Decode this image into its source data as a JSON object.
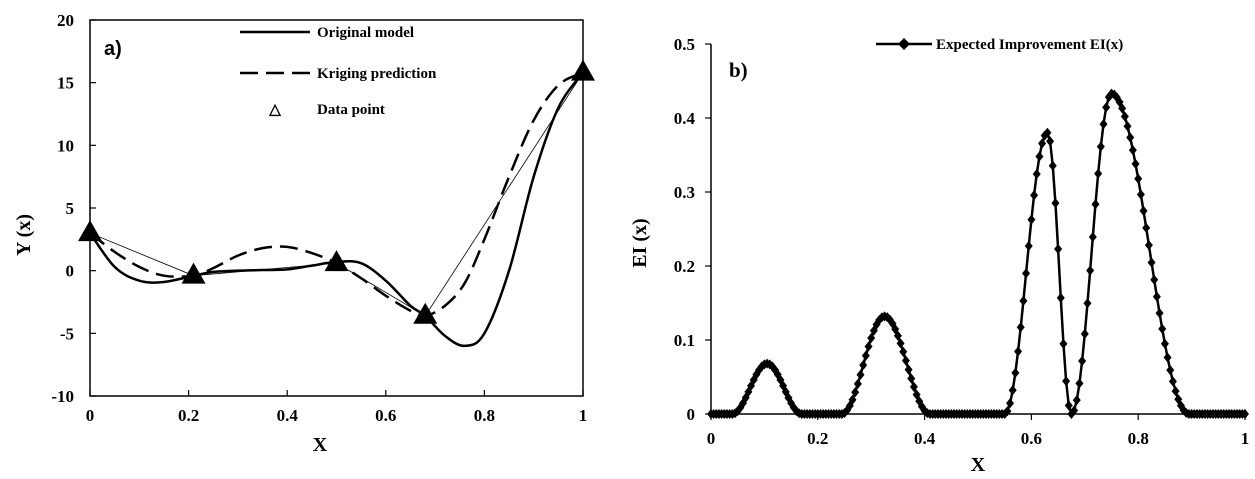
{
  "chart_data": [
    {
      "type": "line",
      "panel_label": "a)",
      "xlabel": "X",
      "ylabel": "Y (x)",
      "xlim": [
        0,
        1
      ],
      "ylim": [
        -10,
        20
      ],
      "xticks": [
        0,
        0.2,
        0.4,
        0.6,
        0.8,
        1
      ],
      "xtick_labels": [
        "0",
        "0.2",
        "0.4",
        "0.6",
        "0.8",
        "1"
      ],
      "yticks": [
        -10,
        -5,
        0,
        5,
        10,
        15,
        20
      ],
      "ytick_labels": [
        "-10",
        "-5",
        "0",
        "5",
        "10",
        "15",
        "20"
      ],
      "legend_position": "top-center",
      "series": [
        {
          "name": "Original model",
          "style": "solid",
          "x": [
            0,
            0.05,
            0.1,
            0.15,
            0.21,
            0.25,
            0.3,
            0.35,
            0.4,
            0.45,
            0.5,
            0.55,
            0.6,
            0.65,
            0.68,
            0.72,
            0.76,
            0.8,
            0.85,
            0.9,
            0.95,
            1.0
          ],
          "y": [
            3.0,
            0.3,
            -0.8,
            -0.9,
            -0.4,
            -0.1,
            0.0,
            0.05,
            0.1,
            0.4,
            0.7,
            0.6,
            -0.8,
            -2.8,
            -3.6,
            -5.2,
            -6.0,
            -5.0,
            0.0,
            7.5,
            13.0,
            15.8
          ]
        },
        {
          "name": "Kriging prediction",
          "style": "dashed",
          "x": [
            0,
            0.05,
            0.1,
            0.15,
            0.21,
            0.25,
            0.3,
            0.35,
            0.4,
            0.45,
            0.5,
            0.55,
            0.6,
            0.65,
            0.68,
            0.72,
            0.76,
            0.8,
            0.85,
            0.9,
            0.95,
            1.0
          ],
          "y": [
            3.0,
            1.5,
            0.3,
            -0.4,
            -0.4,
            0.2,
            1.2,
            1.8,
            1.9,
            1.4,
            0.6,
            -0.6,
            -2.0,
            -3.2,
            -3.6,
            -2.8,
            -1.0,
            2.5,
            7.5,
            12.0,
            14.8,
            15.8
          ]
        },
        {
          "name": "Data point",
          "style": "marker-triangle",
          "x": [
            0,
            0.21,
            0.5,
            0.68,
            1.0
          ],
          "y": [
            3.0,
            -0.4,
            0.6,
            -3.6,
            15.8
          ]
        }
      ]
    },
    {
      "type": "line",
      "panel_label": "b)",
      "xlabel": "X",
      "ylabel": "EI (x)",
      "xlim": [
        0,
        1
      ],
      "ylim": [
        0,
        0.5
      ],
      "xticks": [
        0,
        0.2,
        0.4,
        0.6,
        0.8,
        1
      ],
      "xtick_labels": [
        "0",
        "0.2",
        "0.4",
        "0.6",
        "0.8",
        "1"
      ],
      "yticks": [
        0,
        0.1,
        0.2,
        0.3,
        0.4,
        0.5
      ],
      "ytick_labels": [
        "0",
        "0.1",
        "0.2",
        "0.3",
        "0.4",
        "0.5"
      ],
      "legend_position": "top-right",
      "series": [
        {
          "name": "Expected Improvement EI(x)",
          "style": "solid-diamond",
          "bumps": [
            {
              "range": [
                0.04,
                0.17
              ],
              "peak_x": 0.105,
              "peak_y": 0.068
            },
            {
              "range": [
                0.245,
                0.41
              ],
              "peak_x": 0.325,
              "peak_y": 0.132
            },
            {
              "range": [
                0.55,
                0.675
              ],
              "peak_x": 0.63,
              "peak_y": 0.38
            },
            {
              "range": [
                0.675,
                0.895
              ],
              "peak_x": 0.75,
              "peak_y": 0.433
            }
          ]
        }
      ]
    }
  ]
}
